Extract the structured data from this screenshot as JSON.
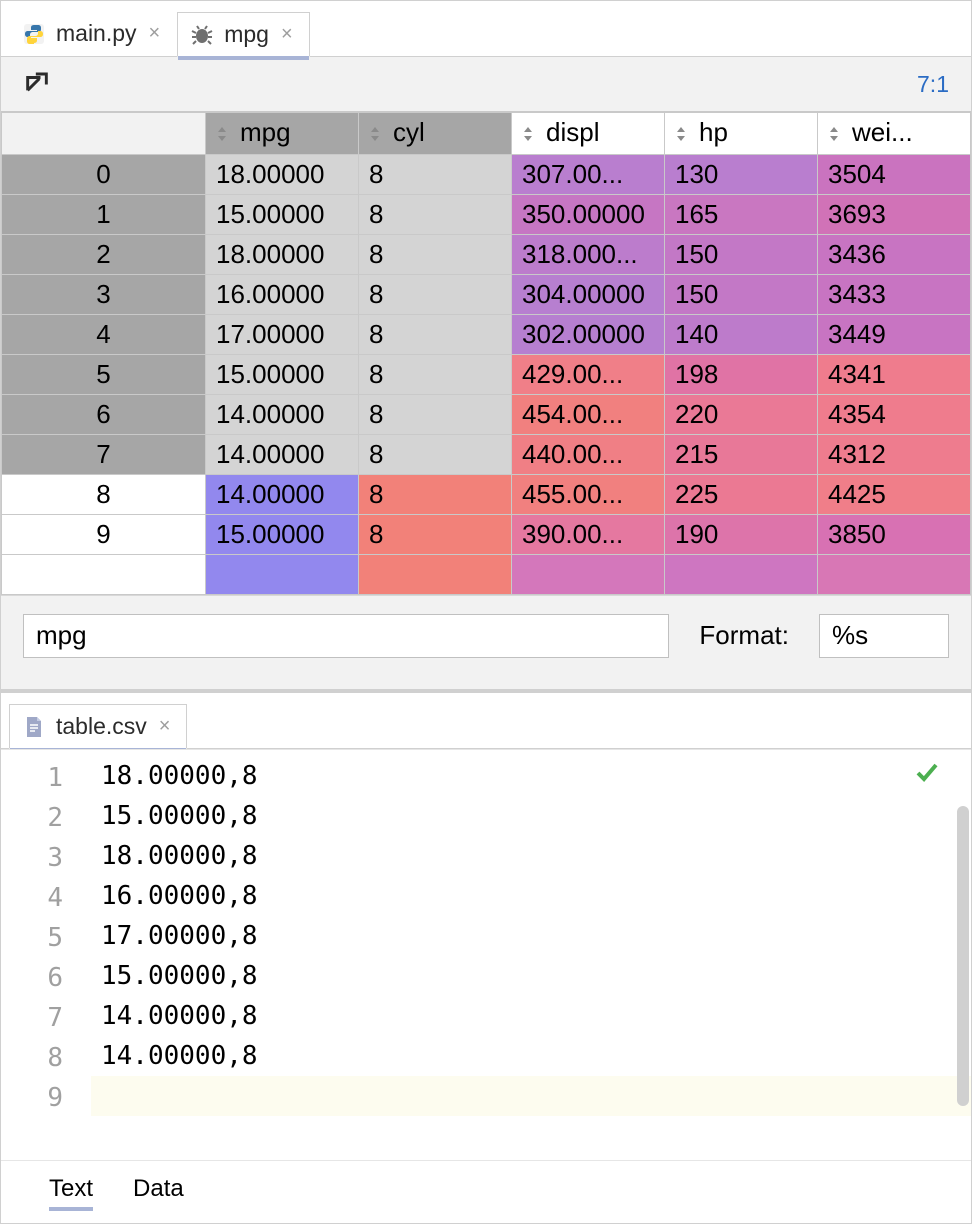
{
  "top_tabs": [
    {
      "label": "main.py",
      "icon": "python",
      "active": false
    },
    {
      "label": "mpg",
      "icon": "bug",
      "active": true
    }
  ],
  "cursor_position": "7:1",
  "dataframe": {
    "var_name": "mpg",
    "format_label": "Format:",
    "format_value": "%s",
    "index_col_width": 200,
    "columns": [
      {
        "name": "mpg",
        "width": 150,
        "header_bg": "#a6a6a6"
      },
      {
        "name": "cyl",
        "width": 150,
        "header_bg": "#a6a6a6"
      },
      {
        "name": "displ",
        "width": 150,
        "header_bg": "#ffffff"
      },
      {
        "name": "hp",
        "width": 150,
        "header_bg": "#ffffff"
      },
      {
        "name": "wei...",
        "width": 150,
        "header_bg": "#ffffff"
      }
    ],
    "rows": [
      {
        "idx": "0",
        "idx_bg": "#a6a6a6",
        "cells": [
          {
            "v": "18.00000",
            "bg": "#d4d4d4"
          },
          {
            "v": "8",
            "bg": "#d4d4d4"
          },
          {
            "v": "307.00...",
            "bg": "#b97ecf"
          },
          {
            "v": "130",
            "bg": "#b97ecf"
          },
          {
            "v": "3504",
            "bg": "#ca73bf"
          }
        ]
      },
      {
        "idx": "1",
        "idx_bg": "#a6a6a6",
        "cells": [
          {
            "v": "15.00000",
            "bg": "#d4d4d4"
          },
          {
            "v": "8",
            "bg": "#d4d4d4"
          },
          {
            "v": "350.00000",
            "bg": "#c676c3"
          },
          {
            "v": "165",
            "bg": "#c977c1"
          },
          {
            "v": "3693",
            "bg": "#d172b7"
          }
        ]
      },
      {
        "idx": "2",
        "idx_bg": "#a6a6a6",
        "cells": [
          {
            "v": "18.00000",
            "bg": "#d4d4d4"
          },
          {
            "v": "8",
            "bg": "#d4d4d4"
          },
          {
            "v": "318.000...",
            "bg": "#bc7ccc"
          },
          {
            "v": "150",
            "bg": "#c378c6"
          },
          {
            "v": "3436",
            "bg": "#c874c2"
          }
        ]
      },
      {
        "idx": "3",
        "idx_bg": "#a6a6a6",
        "cells": [
          {
            "v": "16.00000",
            "bg": "#d4d4d4"
          },
          {
            "v": "8",
            "bg": "#d4d4d4"
          },
          {
            "v": "304.00000",
            "bg": "#b77fd0"
          },
          {
            "v": "150",
            "bg": "#c378c6"
          },
          {
            "v": "3433",
            "bg": "#c874c2"
          }
        ]
      },
      {
        "idx": "4",
        "idx_bg": "#a6a6a6",
        "cells": [
          {
            "v": "17.00000",
            "bg": "#d4d4d4"
          },
          {
            "v": "8",
            "bg": "#d4d4d4"
          },
          {
            "v": "302.00000",
            "bg": "#b67fd0"
          },
          {
            "v": "140",
            "bg": "#bd7bcb"
          },
          {
            "v": "3449",
            "bg": "#c874c2"
          }
        ]
      },
      {
        "idx": "5",
        "idx_bg": "#a6a6a6",
        "cells": [
          {
            "v": "15.00000",
            "bg": "#d4d4d4"
          },
          {
            "v": "8",
            "bg": "#d4d4d4"
          },
          {
            "v": "429.00...",
            "bg": "#f07f88"
          },
          {
            "v": "198",
            "bg": "#e073a5"
          },
          {
            "v": "4341",
            "bg": "#ef7c8d"
          }
        ]
      },
      {
        "idx": "6",
        "idx_bg": "#a6a6a6",
        "cells": [
          {
            "v": "14.00000",
            "bg": "#d4d4d4"
          },
          {
            "v": "8",
            "bg": "#d4d4d4"
          },
          {
            "v": "454.00...",
            "bg": "#f1807f"
          },
          {
            "v": "220",
            "bg": "#ea7996"
          },
          {
            "v": "4354",
            "bg": "#ef7c8d"
          }
        ]
      },
      {
        "idx": "7",
        "idx_bg": "#a6a6a6",
        "cells": [
          {
            "v": "14.00000",
            "bg": "#d4d4d4"
          },
          {
            "v": "8",
            "bg": "#d4d4d4"
          },
          {
            "v": "440.00...",
            "bg": "#f07f85"
          },
          {
            "v": "215",
            "bg": "#e87898"
          },
          {
            "v": "4312",
            "bg": "#ee7c8e"
          }
        ]
      },
      {
        "idx": "8",
        "idx_bg": "#ffffff",
        "cells": [
          {
            "v": "14.00000",
            "bg": "#9288ee"
          },
          {
            "v": "8",
            "bg": "#f28179"
          },
          {
            "v": "455.00...",
            "bg": "#f1807f"
          },
          {
            "v": "225",
            "bg": "#eb7993"
          },
          {
            "v": "4425",
            "bg": "#f07e89"
          }
        ]
      },
      {
        "idx": "9",
        "idx_bg": "#ffffff",
        "cells": [
          {
            "v": "15.00000",
            "bg": "#9288ee"
          },
          {
            "v": "8",
            "bg": "#f28179"
          },
          {
            "v": "390.00...",
            "bg": "#e578a0"
          },
          {
            "v": "190",
            "bg": "#dd74aa"
          },
          {
            "v": "3850",
            "bg": "#d871b3"
          }
        ]
      }
    ],
    "partial_row": {
      "idx_bg": "#ffffff",
      "cell_bgs": [
        "#9288ee",
        "#f28179",
        "#d477bb",
        "#ce76c1",
        "#d877b5"
      ]
    }
  },
  "bottom_file_tab": {
    "label": "table.csv",
    "icon": "textfile",
    "active": true
  },
  "editor": {
    "lines": [
      "18.00000,8",
      "15.00000,8",
      "18.00000,8",
      "16.00000,8",
      "17.00000,8",
      "15.00000,8",
      "14.00000,8",
      "14.00000,8",
      ""
    ],
    "current_line_index": 8
  },
  "bottom_tabs": [
    {
      "label": "Text",
      "active": true
    },
    {
      "label": "Data",
      "active": false
    }
  ]
}
